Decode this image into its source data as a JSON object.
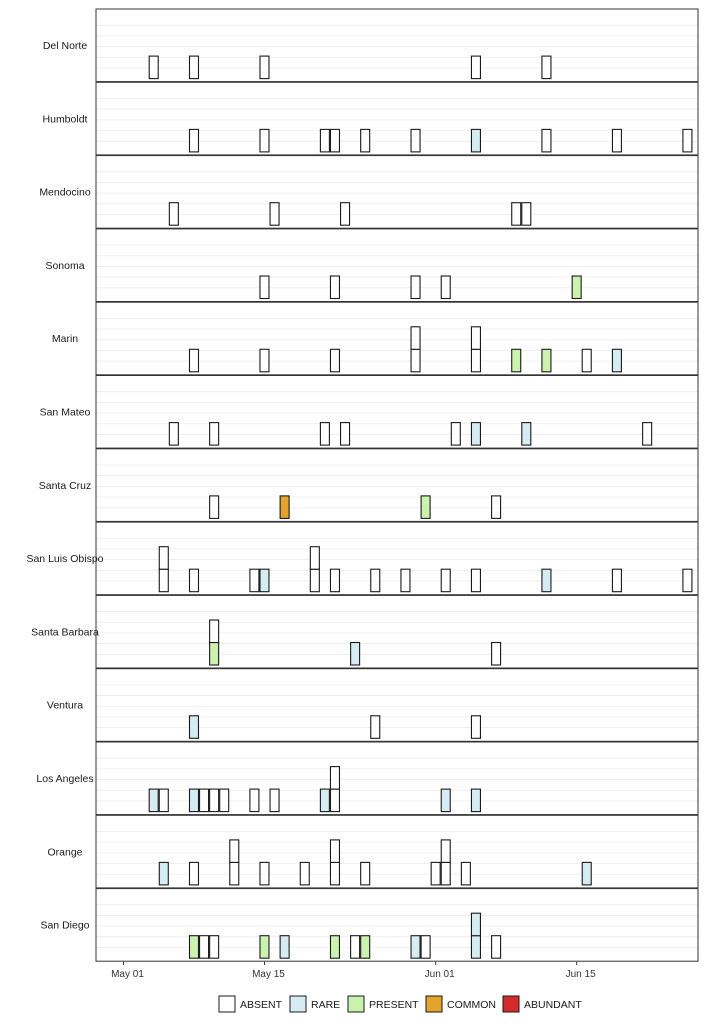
{
  "chart_data": {
    "type": "bar",
    "description_kind": "faceted timeline of survey observations per county",
    "x_axis": {
      "unit": "day of year offset from May 01",
      "range": [
        -3,
        56
      ],
      "ticks": [
        {
          "label": "May 01",
          "value": 0
        },
        {
          "label": "May 15",
          "value": 14
        },
        {
          "label": "Jun 01",
          "value": 31
        },
        {
          "label": "Jun 15",
          "value": 45
        }
      ]
    },
    "y_axis": {
      "unit": "stacked observation count",
      "range": [
        0,
        2.2
      ]
    },
    "categories": [
      "ABSENT",
      "RARE",
      "PRESENT",
      "COMMON",
      "ABUNDANT"
    ],
    "colors": {
      "ABSENT": "#ffffff",
      "RARE": "#d6ecf3",
      "PRESENT": "#ccf2b0",
      "COMMON": "#e3a32c",
      "ABUNDANT": "#d42a2a"
    },
    "panel_background": "#ffffff",
    "grid_color": "#ececec",
    "facets": [
      {
        "name": "Del Norte",
        "observations": [
          {
            "day": 3,
            "stack": [
              "ABSENT"
            ]
          },
          {
            "day": 7,
            "stack": [
              "ABSENT"
            ]
          },
          {
            "day": 14,
            "stack": [
              "ABSENT"
            ]
          },
          {
            "day": 35,
            "stack": [
              "ABSENT"
            ]
          },
          {
            "day": 42,
            "stack": [
              "ABSENT"
            ]
          }
        ]
      },
      {
        "name": "Humboldt",
        "observations": [
          {
            "day": 7,
            "stack": [
              "ABSENT"
            ]
          },
          {
            "day": 14,
            "stack": [
              "ABSENT"
            ]
          },
          {
            "day": 20,
            "stack": [
              "ABSENT"
            ]
          },
          {
            "day": 21,
            "stack": [
              "ABSENT"
            ]
          },
          {
            "day": 24,
            "stack": [
              "ABSENT"
            ]
          },
          {
            "day": 29,
            "stack": [
              "ABSENT"
            ]
          },
          {
            "day": 35,
            "stack": [
              "RARE"
            ]
          },
          {
            "day": 42,
            "stack": [
              "ABSENT"
            ]
          },
          {
            "day": 49,
            "stack": [
              "ABSENT"
            ]
          },
          {
            "day": 56,
            "stack": [
              "ABSENT"
            ]
          }
        ]
      },
      {
        "name": "Mendocino",
        "observations": [
          {
            "day": 5,
            "stack": [
              "ABSENT"
            ]
          },
          {
            "day": 15,
            "stack": [
              "ABSENT"
            ]
          },
          {
            "day": 22,
            "stack": [
              "ABSENT"
            ]
          },
          {
            "day": 39,
            "stack": [
              "ABSENT"
            ]
          },
          {
            "day": 40,
            "stack": [
              "ABSENT"
            ]
          }
        ]
      },
      {
        "name": "Sonoma",
        "observations": [
          {
            "day": 14,
            "stack": [
              "ABSENT"
            ]
          },
          {
            "day": 21,
            "stack": [
              "ABSENT"
            ]
          },
          {
            "day": 29,
            "stack": [
              "ABSENT"
            ]
          },
          {
            "day": 32,
            "stack": [
              "ABSENT"
            ]
          },
          {
            "day": 45,
            "stack": [
              "PRESENT"
            ]
          }
        ]
      },
      {
        "name": "Marin",
        "observations": [
          {
            "day": 7,
            "stack": [
              "ABSENT"
            ]
          },
          {
            "day": 14,
            "stack": [
              "ABSENT"
            ]
          },
          {
            "day": 21,
            "stack": [
              "ABSENT"
            ]
          },
          {
            "day": 29,
            "stack": [
              "ABSENT",
              "ABSENT"
            ]
          },
          {
            "day": 35,
            "stack": [
              "ABSENT",
              "ABSENT"
            ]
          },
          {
            "day": 39,
            "stack": [
              "PRESENT"
            ]
          },
          {
            "day": 42,
            "stack": [
              "PRESENT"
            ]
          },
          {
            "day": 46,
            "stack": [
              "ABSENT"
            ]
          },
          {
            "day": 49,
            "stack": [
              "RARE"
            ]
          }
        ]
      },
      {
        "name": "San Mateo",
        "observations": [
          {
            "day": 5,
            "stack": [
              "ABSENT"
            ]
          },
          {
            "day": 9,
            "stack": [
              "ABSENT"
            ]
          },
          {
            "day": 20,
            "stack": [
              "ABSENT"
            ]
          },
          {
            "day": 22,
            "stack": [
              "ABSENT"
            ]
          },
          {
            "day": 33,
            "stack": [
              "ABSENT"
            ]
          },
          {
            "day": 35,
            "stack": [
              "RARE"
            ]
          },
          {
            "day": 40,
            "stack": [
              "RARE"
            ]
          },
          {
            "day": 52,
            "stack": [
              "ABSENT"
            ]
          }
        ]
      },
      {
        "name": "Santa Cruz",
        "observations": [
          {
            "day": 9,
            "stack": [
              "ABSENT"
            ]
          },
          {
            "day": 16,
            "stack": [
              "COMMON"
            ]
          },
          {
            "day": 30,
            "stack": [
              "PRESENT"
            ]
          },
          {
            "day": 37,
            "stack": [
              "ABSENT"
            ]
          }
        ]
      },
      {
        "name": "San Luis Obispo",
        "observations": [
          {
            "day": 4,
            "stack": [
              "ABSENT",
              "ABSENT"
            ]
          },
          {
            "day": 7,
            "stack": [
              "ABSENT"
            ]
          },
          {
            "day": 13,
            "stack": [
              "ABSENT"
            ]
          },
          {
            "day": 14,
            "stack": [
              "RARE"
            ]
          },
          {
            "day": 19,
            "stack": [
              "ABSENT",
              "ABSENT"
            ]
          },
          {
            "day": 21,
            "stack": [
              "ABSENT"
            ]
          },
          {
            "day": 25,
            "stack": [
              "ABSENT"
            ]
          },
          {
            "day": 28,
            "stack": [
              "ABSENT"
            ]
          },
          {
            "day": 32,
            "stack": [
              "ABSENT"
            ]
          },
          {
            "day": 35,
            "stack": [
              "ABSENT"
            ]
          },
          {
            "day": 42,
            "stack": [
              "RARE"
            ]
          },
          {
            "day": 49,
            "stack": [
              "ABSENT"
            ]
          },
          {
            "day": 56,
            "stack": [
              "ABSENT"
            ]
          }
        ]
      },
      {
        "name": "Santa Barbara",
        "observations": [
          {
            "day": 9,
            "stack": [
              "PRESENT",
              "ABSENT"
            ]
          },
          {
            "day": 23,
            "stack": [
              "RARE"
            ]
          },
          {
            "day": 37,
            "stack": [
              "ABSENT"
            ]
          }
        ]
      },
      {
        "name": "Ventura",
        "observations": [
          {
            "day": 7,
            "stack": [
              "RARE"
            ]
          },
          {
            "day": 25,
            "stack": [
              "ABSENT"
            ]
          },
          {
            "day": 35,
            "stack": [
              "ABSENT"
            ]
          }
        ]
      },
      {
        "name": "Los Angeles",
        "observations": [
          {
            "day": 3,
            "stack": [
              "RARE"
            ]
          },
          {
            "day": 4,
            "stack": [
              "ABSENT"
            ]
          },
          {
            "day": 7,
            "stack": [
              "RARE"
            ]
          },
          {
            "day": 8,
            "stack": [
              "ABSENT"
            ]
          },
          {
            "day": 9,
            "stack": [
              "ABSENT"
            ]
          },
          {
            "day": 10,
            "stack": [
              "ABSENT"
            ]
          },
          {
            "day": 13,
            "stack": [
              "ABSENT"
            ]
          },
          {
            "day": 15,
            "stack": [
              "ABSENT"
            ]
          },
          {
            "day": 20,
            "stack": [
              "RARE"
            ]
          },
          {
            "day": 21,
            "stack": [
              "ABSENT",
              "ABSENT"
            ]
          },
          {
            "day": 32,
            "stack": [
              "RARE"
            ]
          },
          {
            "day": 35,
            "stack": [
              "RARE"
            ]
          }
        ]
      },
      {
        "name": "Orange",
        "observations": [
          {
            "day": 4,
            "stack": [
              "RARE"
            ]
          },
          {
            "day": 7,
            "stack": [
              "ABSENT"
            ]
          },
          {
            "day": 11,
            "stack": [
              "ABSENT",
              "ABSENT"
            ]
          },
          {
            "day": 14,
            "stack": [
              "ABSENT"
            ]
          },
          {
            "day": 18,
            "stack": [
              "ABSENT"
            ]
          },
          {
            "day": 21,
            "stack": [
              "ABSENT",
              "ABSENT"
            ]
          },
          {
            "day": 24,
            "stack": [
              "ABSENT"
            ]
          },
          {
            "day": 31,
            "stack": [
              "ABSENT"
            ]
          },
          {
            "day": 32,
            "stack": [
              "ABSENT",
              "ABSENT"
            ]
          },
          {
            "day": 34,
            "stack": [
              "ABSENT"
            ]
          },
          {
            "day": 46,
            "stack": [
              "RARE"
            ]
          }
        ]
      },
      {
        "name": "San Diego",
        "observations": [
          {
            "day": 7,
            "stack": [
              "PRESENT"
            ]
          },
          {
            "day": 8,
            "stack": [
              "ABSENT"
            ]
          },
          {
            "day": 9,
            "stack": [
              "ABSENT"
            ]
          },
          {
            "day": 14,
            "stack": [
              "PRESENT"
            ]
          },
          {
            "day": 16,
            "stack": [
              "RARE"
            ]
          },
          {
            "day": 21,
            "stack": [
              "PRESENT"
            ]
          },
          {
            "day": 23,
            "stack": [
              "ABSENT"
            ]
          },
          {
            "day": 24,
            "stack": [
              "PRESENT"
            ]
          },
          {
            "day": 29,
            "stack": [
              "RARE"
            ]
          },
          {
            "day": 30,
            "stack": [
              "ABSENT"
            ]
          },
          {
            "day": 35,
            "stack": [
              "RARE",
              "RARE"
            ]
          },
          {
            "day": 37,
            "stack": [
              "ABSENT"
            ]
          }
        ]
      }
    ],
    "legend": {
      "position": "bottom",
      "entries": [
        {
          "key": "ABSENT",
          "label": "ABSENT"
        },
        {
          "key": "RARE",
          "label": "RARE"
        },
        {
          "key": "PRESENT",
          "label": "PRESENT"
        },
        {
          "key": "COMMON",
          "label": "COMMON"
        },
        {
          "key": "ABUNDANT",
          "label": "ABUNDANT"
        }
      ]
    }
  }
}
